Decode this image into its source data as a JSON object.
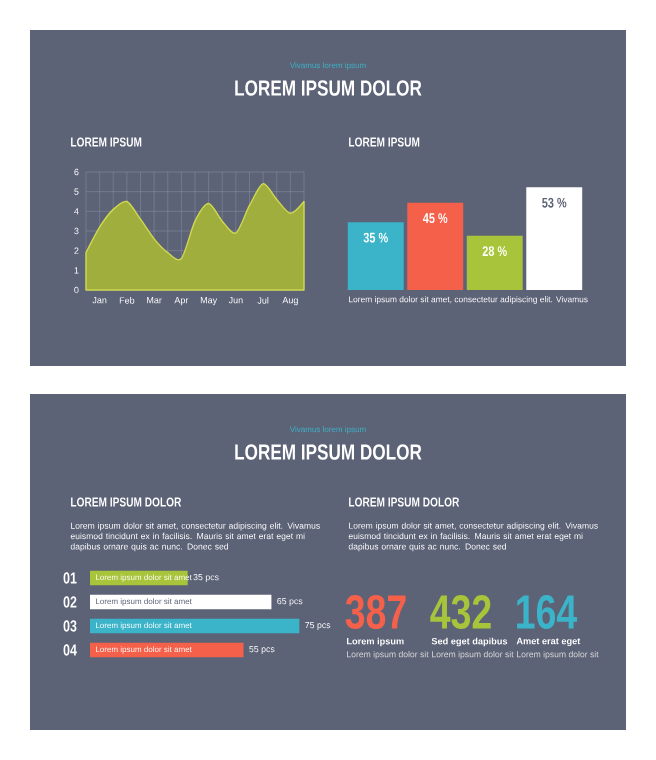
{
  "chart_data": [
    {
      "type": "other",
      "subtitle": "Vivamus lorem ipsum",
      "title": "LOREM IPSUM DOLOR"
    },
    {
      "type": "area",
      "title": "LOREM IPSUM",
      "color": "#9fae3c",
      "categories": [
        null,
        "Jan",
        null,
        "Feb",
        null,
        "Mar",
        null,
        "Apr",
        null,
        "May",
        null,
        "Jun",
        null,
        "Jul",
        null,
        "Aug",
        null
      ],
      "values": [
        1.9,
        3.2,
        4.1,
        4.5,
        3.6,
        2.6,
        1.9,
        1.6,
        3.5,
        4.4,
        3.5,
        2.9,
        4.3,
        5.4,
        4.6,
        3.9,
        4.5
      ],
      "ylim": [
        0,
        6
      ],
      "yticks": [
        0,
        1,
        2,
        3,
        4,
        5,
        6
      ],
      "grid": true
    },
    {
      "type": "bar",
      "title": "LOREM IPSUM",
      "categories": [
        null,
        null,
        null,
        null
      ],
      "values": [
        35,
        45,
        28,
        53
      ],
      "colors": [
        "#3bb4c9",
        "#f4604a",
        "#a8c43a",
        "#ffffff"
      ],
      "value_labels": [
        "35 %",
        "45 %",
        "28 %",
        "53 %"
      ],
      "tick_labels": false,
      "annotations": [
        "Lorem ipsum dolor sit amet, consectetur adipiscing elit. Vivamus"
      ]
    },
    {
      "type": "other",
      "subtitle": "Vivamus lorem ipsum",
      "title": "LOREM IPSUM DOLOR"
    },
    {
      "type": "bar",
      "orientation": "horizontal",
      "title": "LOREM IPSUM DOLOR",
      "subtitle": "Lorem ipsum dolor sit amet, consectetur adipiscing elit. Vivamus euismod tincidunt ex in facilisis. Mauris sit amet erat eget mi dapibus ornare quis ac nunc. Donec sed",
      "categories": [
        "01",
        "02",
        "03",
        "04"
      ],
      "values": [
        35,
        65,
        75,
        55
      ],
      "colors": [
        "#a8c43a",
        "#ffffff",
        "#3bb4c9",
        "#f4604a"
      ],
      "value_labels": [
        "35 pcs",
        "65 pcs",
        "75 pcs",
        "55 pcs"
      ],
      "tick_labels": "y",
      "annotations": [
        {
          "text": "Lorem ipsum dolor sit amet",
          "y": "01"
        },
        {
          "text": "Lorem ipsum dolor sit amet",
          "y": "02"
        },
        {
          "text": "Lorem ipsum dolor sit amet",
          "y": "03"
        },
        {
          "text": "Lorem ipsum dolor sit amet",
          "y": "04"
        }
      ]
    },
    {
      "type": "other",
      "title": "LOREM IPSUM DOLOR",
      "subtitle": "Lorem ipsum dolor sit amet, consectetur adipiscing elit. Vivamus euismod tincidunt ex in facilisis. Mauris sit amet erat eget mi dapibus ornare quis ac nunc. Donec sed",
      "categories": [
        "Lorem ipsum",
        "Sed eget dapibus",
        "Amet erat eget"
      ],
      "values": [
        387,
        432,
        164
      ],
      "value_labels": [
        "387",
        "432",
        "164"
      ],
      "colors": [
        "#f4604a",
        "#a8c43a",
        "#3bb4c9"
      ],
      "annotations": [
        "Lorem ipsum dolor sit",
        "Lorem ipsum dolor sit",
        "Lorem ipsum dolor sit"
      ]
    }
  ]
}
